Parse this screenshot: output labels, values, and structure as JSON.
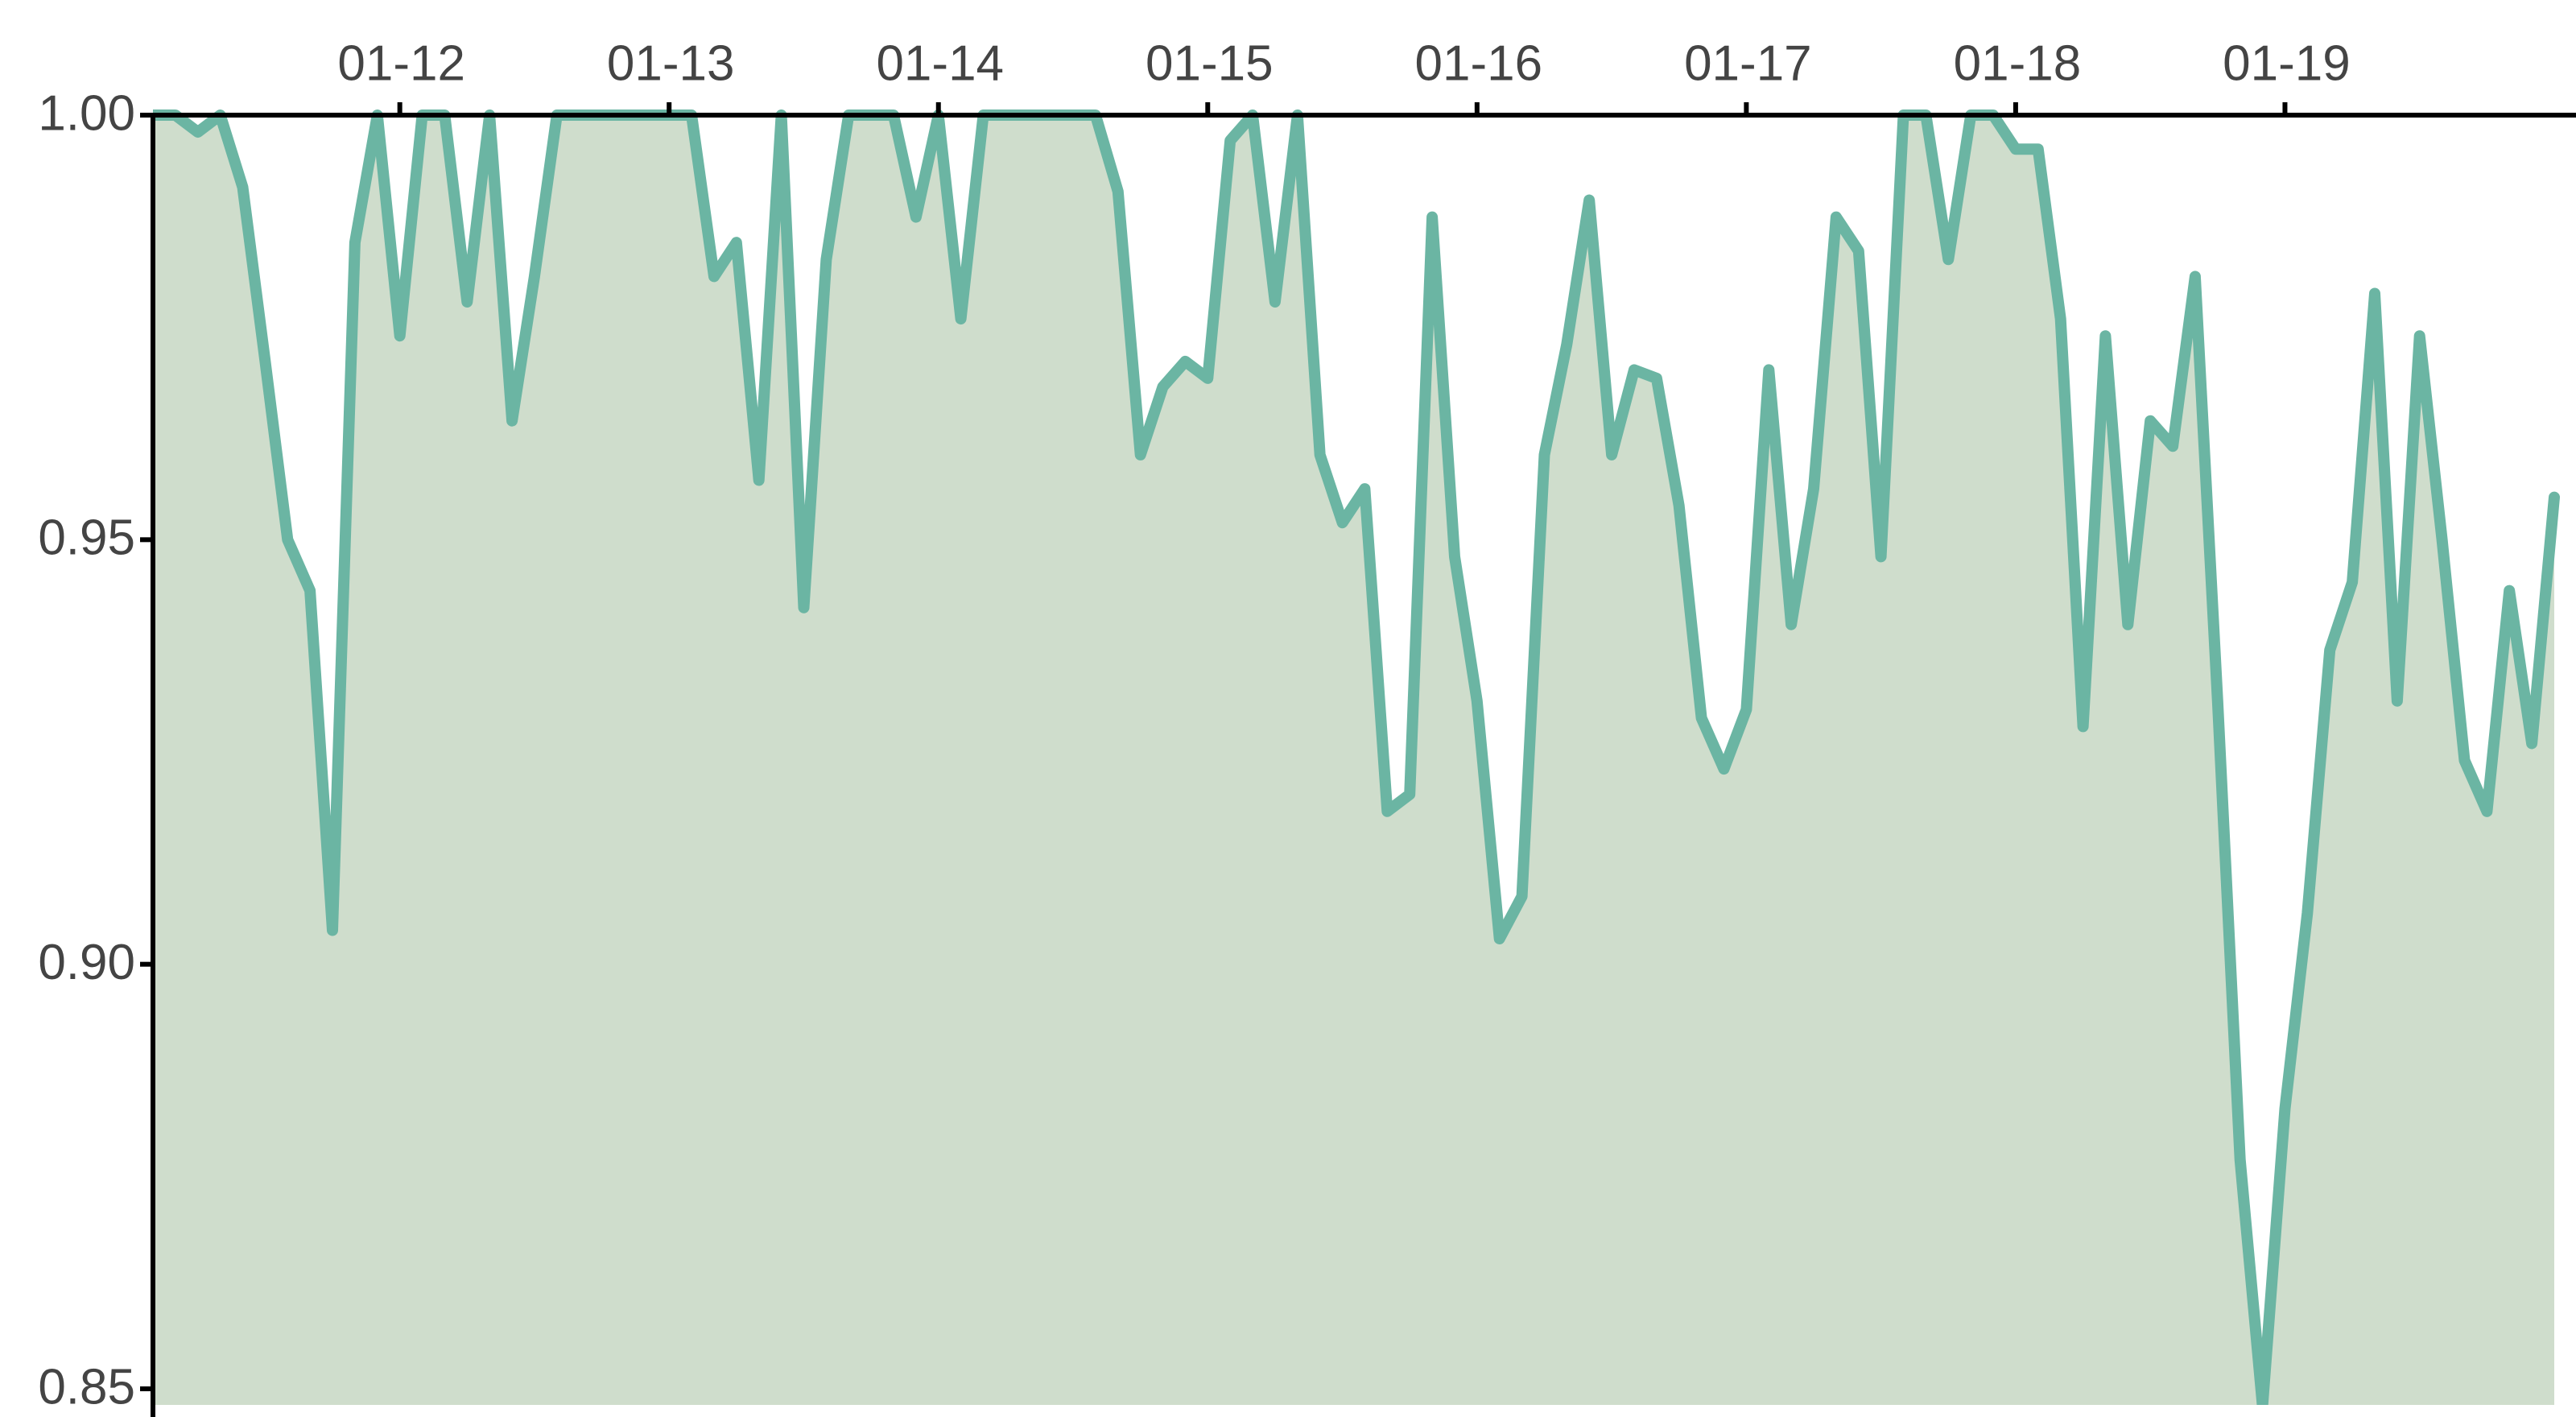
{
  "chart_data": {
    "type": "area",
    "values": [
      1.0,
      1.0,
      0.998,
      1.0,
      0.9915,
      0.971,
      0.95,
      0.944,
      0.904,
      0.985,
      1.0,
      0.974,
      1.0,
      1.0,
      0.978,
      1.0,
      0.964,
      0.981,
      1.0,
      1.0,
      1.0,
      1.0,
      1.0,
      1.0,
      1.0,
      0.981,
      0.985,
      0.957,
      1.0,
      0.942,
      0.983,
      1.0,
      1.0,
      1.0,
      0.988,
      1.0,
      0.976,
      1.0,
      1.0,
      1.0,
      1.0,
      1.0,
      1.0,
      0.991,
      0.96,
      0.968,
      0.971,
      0.969,
      0.997,
      1.0,
      0.978,
      1.0,
      0.96,
      0.952,
      0.956,
      0.918,
      0.92,
      0.988,
      0.948,
      0.931,
      0.903,
      0.908,
      0.96,
      0.973,
      0.99,
      0.96,
      0.97,
      0.969,
      0.954,
      0.929,
      0.923,
      0.93,
      0.97,
      0.94,
      0.956,
      0.988,
      0.984,
      0.948,
      1.0,
      1.0,
      0.983,
      1.0,
      1.0,
      0.996,
      0.996,
      0.976,
      0.928,
      0.974,
      0.94,
      0.964,
      0.961,
      0.981,
      0.931,
      0.877,
      0.848,
      0.883,
      0.906,
      0.937,
      0.945,
      0.979,
      0.931,
      0.974,
      0.95,
      0.924,
      0.918,
      0.944,
      0.926,
      0.955
    ],
    "color": "#6bb5a3",
    "fill_color": "#cfddcc",
    "xlim": [
      0,
      107
    ],
    "xticks": [
      {
        "value": 11,
        "label": "01-12"
      },
      {
        "value": 23,
        "label": "01-13"
      },
      {
        "value": 35,
        "label": "01-14"
      },
      {
        "value": 47,
        "label": "01-15"
      },
      {
        "value": 59,
        "label": "01-16"
      },
      {
        "value": 71,
        "label": "01-17"
      },
      {
        "value": 83,
        "label": "01-18"
      },
      {
        "value": 95,
        "label": "01-19"
      }
    ],
    "ylim": [
      0.85,
      1.0
    ],
    "yticks": [
      {
        "value": 0.85,
        "label": "0.85"
      },
      {
        "value": 0.9,
        "label": "0.90"
      },
      {
        "value": 0.95,
        "label": "0.95"
      },
      {
        "value": 1.0,
        "label": "1.00"
      }
    ],
    "x_axis_position": "top",
    "grid": false
  }
}
